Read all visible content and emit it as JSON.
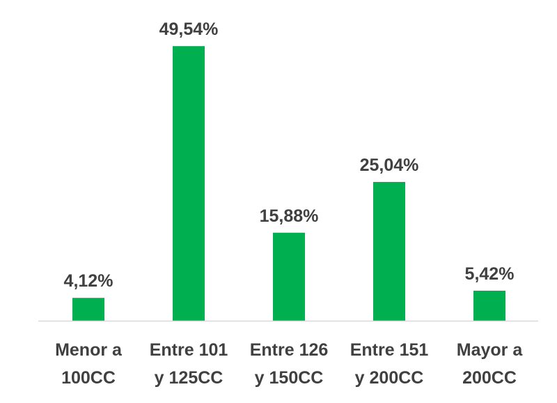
{
  "chart_data": {
    "type": "bar",
    "categories": [
      [
        "Menor a",
        "100CC"
      ],
      [
        "Entre 101",
        "y 125CC"
      ],
      [
        "Entre 126",
        "y 150CC"
      ],
      [
        "Entre 151",
        "y 200CC"
      ],
      [
        "Mayor a",
        "200CC"
      ]
    ],
    "values": [
      4.12,
      49.54,
      15.88,
      25.04,
      5.42
    ],
    "data_labels": [
      "4,12%",
      "49,54%",
      "15,88%",
      "25,04%",
      "5,42%"
    ],
    "unit": "%",
    "ylim": [
      0,
      50
    ],
    "grid": false,
    "legend": "none",
    "bar_color": "#00b050",
    "axis_color": "#d9d9d9",
    "text_color": "#404040"
  }
}
